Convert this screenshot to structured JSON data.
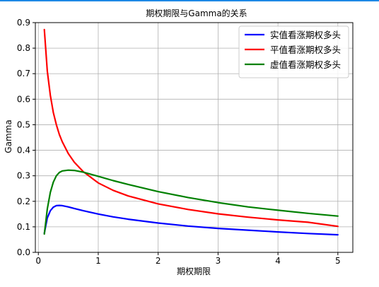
{
  "chart_data": {
    "type": "line",
    "title": "期权期限与Gamma的关系",
    "xlabel": "期权期限",
    "ylabel": "Gamma",
    "xlim": [
      -0.05,
      5.25
    ],
    "ylim": [
      0.0,
      0.9
    ],
    "xticks": [
      0,
      1,
      2,
      3,
      4,
      5
    ],
    "yticks": [
      0.0,
      0.1,
      0.2,
      0.3,
      0.4,
      0.5,
      0.6,
      0.7,
      0.8,
      0.9
    ],
    "xtick_labels": [
      "0",
      "1",
      "2",
      "3",
      "4",
      "5"
    ],
    "ytick_labels": [
      "0.0",
      "0.1",
      "0.2",
      "0.3",
      "0.4",
      "0.5",
      "0.6",
      "0.7",
      "0.8",
      "0.9"
    ],
    "grid": true,
    "legend_position": "top-right",
    "series": [
      {
        "name": "实值看涨期权多头",
        "color": "#0000ff",
        "x": [
          0.1,
          0.15,
          0.2,
          0.25,
          0.3,
          0.35,
          0.4,
          0.5,
          0.6,
          0.75,
          1.0,
          1.25,
          1.5,
          2.0,
          2.5,
          3.0,
          3.5,
          4.0,
          4.5,
          5.0
        ],
        "y": [
          0.075,
          0.135,
          0.163,
          0.177,
          0.183,
          0.184,
          0.183,
          0.178,
          0.172,
          0.163,
          0.15,
          0.139,
          0.13,
          0.115,
          0.103,
          0.094,
          0.087,
          0.08,
          0.074,
          0.069
        ]
      },
      {
        "name": "平值看涨期权多头",
        "color": "#ff0000",
        "x": [
          0.1,
          0.15,
          0.2,
          0.25,
          0.3,
          0.35,
          0.4,
          0.5,
          0.6,
          0.75,
          1.0,
          1.25,
          1.5,
          2.0,
          2.5,
          3.0,
          3.5,
          4.0,
          4.5,
          5.0
        ],
        "y": [
          0.873,
          0.71,
          0.615,
          0.548,
          0.5,
          0.462,
          0.433,
          0.387,
          0.353,
          0.316,
          0.272,
          0.243,
          0.221,
          0.19,
          0.168,
          0.151,
          0.138,
          0.127,
          0.118,
          0.102
        ]
      },
      {
        "name": "虚值看涨期权多头",
        "color": "#008000",
        "x": [
          0.1,
          0.15,
          0.2,
          0.25,
          0.3,
          0.35,
          0.4,
          0.5,
          0.6,
          0.75,
          1.0,
          1.25,
          1.5,
          2.0,
          2.5,
          3.0,
          3.5,
          4.0,
          4.5,
          5.0
        ],
        "y": [
          0.072,
          0.17,
          0.235,
          0.275,
          0.3,
          0.313,
          0.319,
          0.322,
          0.321,
          0.314,
          0.298,
          0.281,
          0.266,
          0.238,
          0.215,
          0.195,
          0.178,
          0.165,
          0.153,
          0.142
        ]
      }
    ]
  }
}
